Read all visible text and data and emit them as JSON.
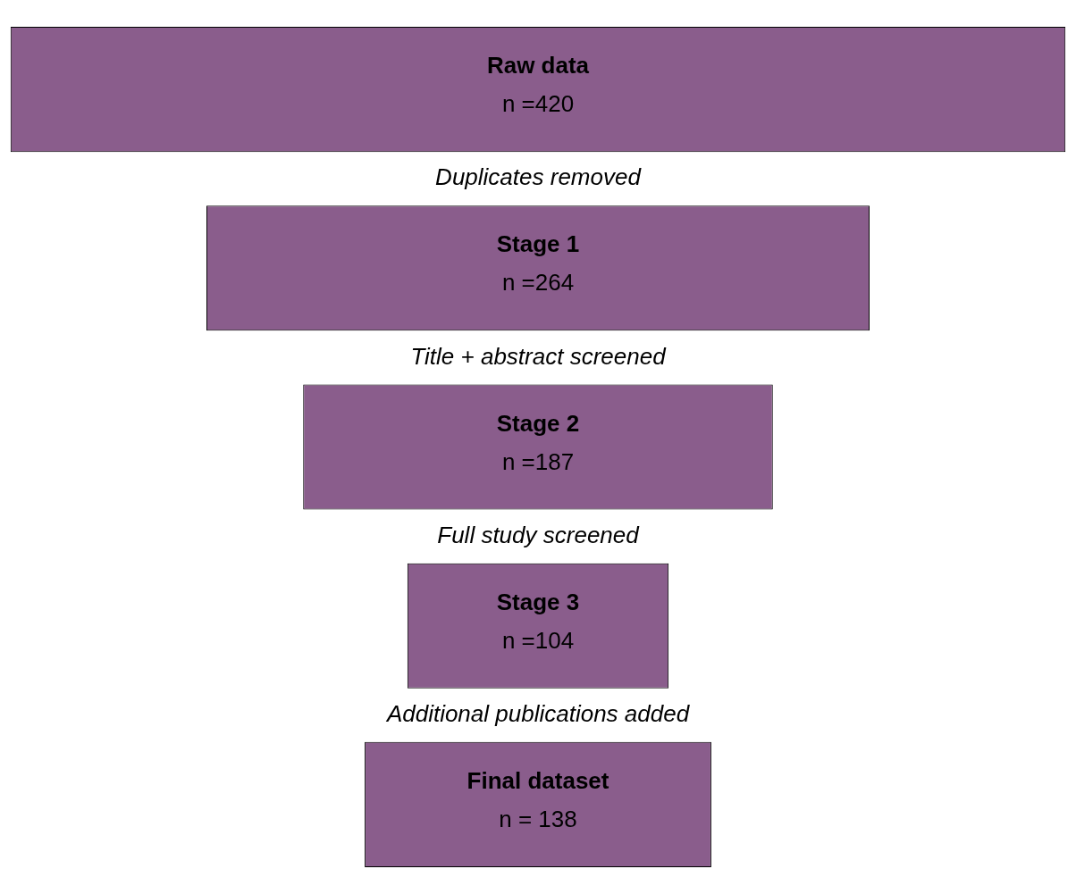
{
  "chart_data": {
    "type": "other",
    "categories": [
      "Raw data",
      "Stage 1",
      "Stage 2",
      "Stage 3",
      "Final dataset"
    ],
    "values": [
      420,
      264,
      187,
      104,
      138
    ],
    "value_labels": [
      "n =420",
      "n =264",
      "n =187",
      "n =104",
      "n = 138"
    ],
    "color": "#8a5d8c",
    "annotations": [
      "Duplicates removed",
      "Title + abstract screened",
      "Full study screened",
      "Additional publications added"
    ]
  }
}
